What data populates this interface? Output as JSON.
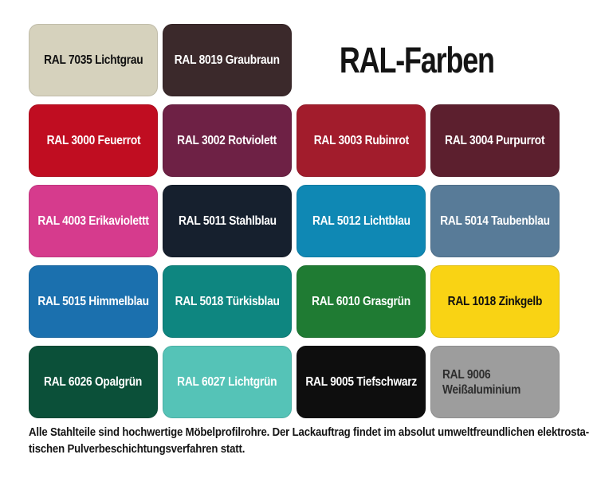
{
  "title": "RAL-Farben",
  "swatches": [
    {
      "label": "RAL 7035 Lichtgrau",
      "bg": "#d6d2bd",
      "fg": "#101010"
    },
    {
      "label": "RAL 8019 Graubraun",
      "bg": "#3b292b",
      "fg": "#ffffff"
    },
    {
      "label": "RAL 3000 Feuerrot",
      "bg": "#c00d21",
      "fg": "#ffffff"
    },
    {
      "label": "RAL 3002 Rotviolett",
      "bg": "#6e2145",
      "fg": "#ffffff"
    },
    {
      "label": "RAL 3003 Rubinrot",
      "bg": "#a21c2c",
      "fg": "#ffffff"
    },
    {
      "label": "RAL 3004 Purpurrot",
      "bg": "#5c1f2e",
      "fg": "#ffffff"
    },
    {
      "label": "RAL 4003 Erikaviolettt",
      "bg": "#d63b8d",
      "fg": "#ffffff"
    },
    {
      "label": "RAL 5011 Stahlblau",
      "bg": "#16202e",
      "fg": "#ffffff"
    },
    {
      "label": "RAL 5012 Lichtblau",
      "bg": "#0f88b4",
      "fg": "#ffffff"
    },
    {
      "label": "RAL 5014 Taubenblau",
      "bg": "#587b98",
      "fg": "#ffffff"
    },
    {
      "label": "RAL 5015 Himmelblau",
      "bg": "#1b70ae",
      "fg": "#ffffff"
    },
    {
      "label": "RAL 5018 Türkisblau",
      "bg": "#0e8680",
      "fg": "#ffffff"
    },
    {
      "label": "RAL 6010 Grasgrün",
      "bg": "#1f7b33",
      "fg": "#ffffff"
    },
    {
      "label": "RAL 1018 Zinkgelb",
      "bg": "#f9d314",
      "fg": "#101010"
    },
    {
      "label": "RAL 6026 Opalgrün",
      "bg": "#0b5039",
      "fg": "#ffffff"
    },
    {
      "label": "RAL 6027 Lichtgrün",
      "bg": "#55c3b7",
      "fg": "#ffffff"
    },
    {
      "label": "RAL 9005 Tiefschwarz",
      "bg": "#0e0e0e",
      "fg": "#ffffff"
    },
    {
      "label": "RAL 9006 Weißaluminium",
      "bg": "#9d9d9d",
      "fg": "#2e2e2e"
    }
  ],
  "footer": {
    "line1": "Alle Stahlteile sind hochwertige Möbelprofilrohre. Der Lackauftrag findet im absolut umweltfreundlichen elektrosta-",
    "line2": "tischen Pulverbeschichtungsverfahren statt."
  }
}
